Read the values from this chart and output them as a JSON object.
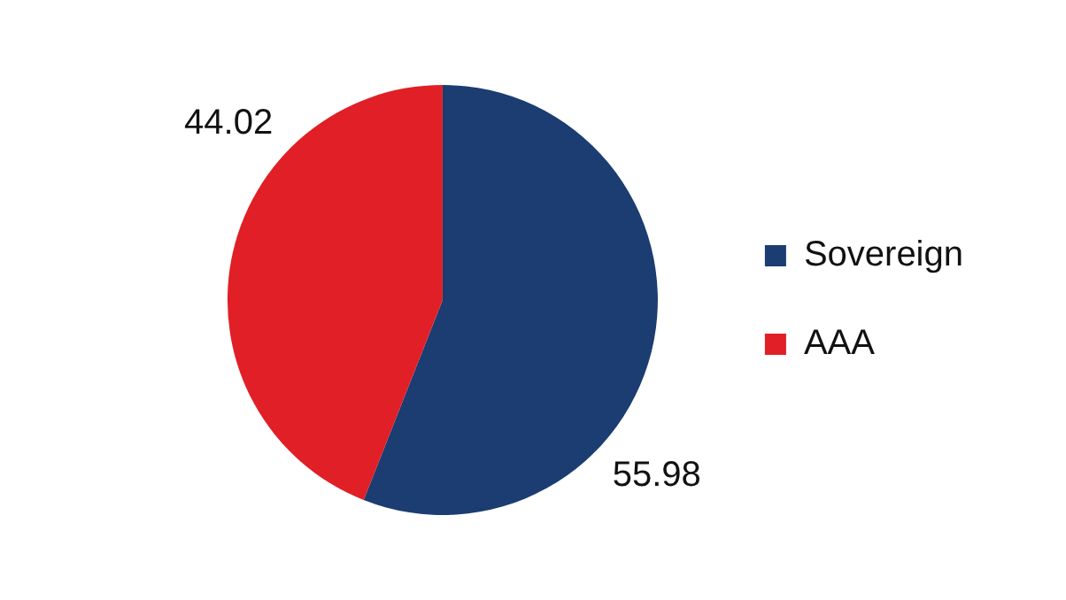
{
  "chart_data": {
    "type": "pie",
    "categories": [
      "Sovereign",
      "AAA"
    ],
    "values": [
      55.98,
      44.02
    ],
    "colors": [
      "#1b3d71",
      "#e01f26"
    ],
    "data_labels": true,
    "legend": "right"
  }
}
